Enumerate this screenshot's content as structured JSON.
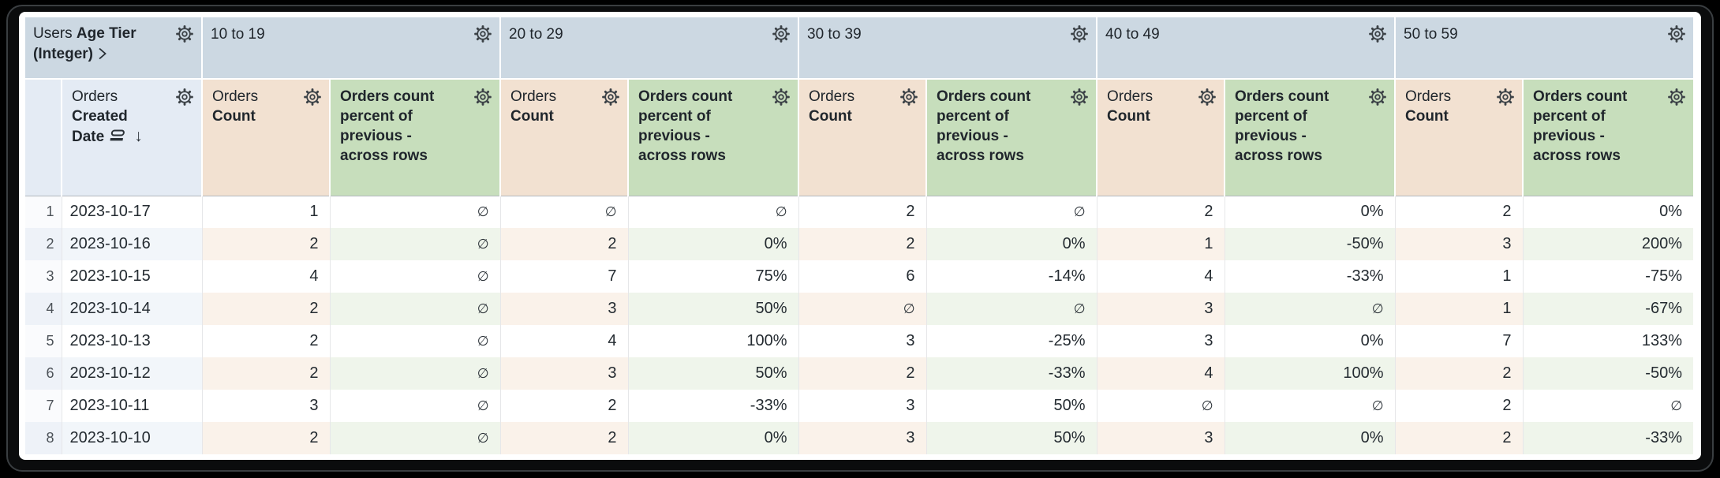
{
  "pivot": {
    "dimension": {
      "view": "Users",
      "field": "Age Tier (Integer)"
    },
    "row_dimension": {
      "view": "Orders",
      "field": "Created Date",
      "sort": "descending"
    },
    "tiers": [
      "10 to 19",
      "20 to 29",
      "30 to 39",
      "40 to 49",
      "50 to 59"
    ],
    "measures": {
      "count": {
        "view": "Orders",
        "field": "Count"
      },
      "percent": {
        "label": "Orders count percent of previous - across rows"
      }
    }
  },
  "null_symbol": "∅",
  "icons": {
    "gear": "gear-icon",
    "chevron": "chevron-right-icon",
    "date_group": "date-group-icon",
    "sort_desc": "↓"
  },
  "colors": {
    "pivot_header_bg": "#ccd8e2",
    "dimension_header_bg": "#e4ebf4",
    "count_header_bg": "#f2e1d1",
    "percent_header_bg": "#c7debc",
    "even_row_count_bg": "#faf2ea",
    "even_row_percent_bg": "#eff5eb",
    "text": "#242b31"
  },
  "rows": [
    {
      "index": "1",
      "date": "2023-10-17",
      "cells": [
        [
          "1",
          "∅"
        ],
        [
          "∅",
          "∅"
        ],
        [
          "2",
          "∅"
        ],
        [
          "2",
          "0%"
        ],
        [
          "2",
          "0%"
        ]
      ]
    },
    {
      "index": "2",
      "date": "2023-10-16",
      "cells": [
        [
          "2",
          "∅"
        ],
        [
          "2",
          "0%"
        ],
        [
          "2",
          "0%"
        ],
        [
          "1",
          "-50%"
        ],
        [
          "3",
          "200%"
        ]
      ]
    },
    {
      "index": "3",
      "date": "2023-10-15",
      "cells": [
        [
          "4",
          "∅"
        ],
        [
          "7",
          "75%"
        ],
        [
          "6",
          "-14%"
        ],
        [
          "4",
          "-33%"
        ],
        [
          "1",
          "-75%"
        ]
      ]
    },
    {
      "index": "4",
      "date": "2023-10-14",
      "cells": [
        [
          "2",
          "∅"
        ],
        [
          "3",
          "50%"
        ],
        [
          "∅",
          "∅"
        ],
        [
          "3",
          "∅"
        ],
        [
          "1",
          "-67%"
        ]
      ]
    },
    {
      "index": "5",
      "date": "2023-10-13",
      "cells": [
        [
          "2",
          "∅"
        ],
        [
          "4",
          "100%"
        ],
        [
          "3",
          "-25%"
        ],
        [
          "3",
          "0%"
        ],
        [
          "7",
          "133%"
        ]
      ]
    },
    {
      "index": "6",
      "date": "2023-10-12",
      "cells": [
        [
          "2",
          "∅"
        ],
        [
          "3",
          "50%"
        ],
        [
          "2",
          "-33%"
        ],
        [
          "4",
          "100%"
        ],
        [
          "2",
          "-50%"
        ]
      ]
    },
    {
      "index": "7",
      "date": "2023-10-11",
      "cells": [
        [
          "3",
          "∅"
        ],
        [
          "2",
          "-33%"
        ],
        [
          "3",
          "50%"
        ],
        [
          "∅",
          "∅"
        ],
        [
          "2",
          "∅"
        ]
      ]
    },
    {
      "index": "8",
      "date": "2023-10-10",
      "cells": [
        [
          "2",
          "∅"
        ],
        [
          "2",
          "0%"
        ],
        [
          "3",
          "50%"
        ],
        [
          "3",
          "0%"
        ],
        [
          "2",
          "-33%"
        ]
      ]
    }
  ]
}
